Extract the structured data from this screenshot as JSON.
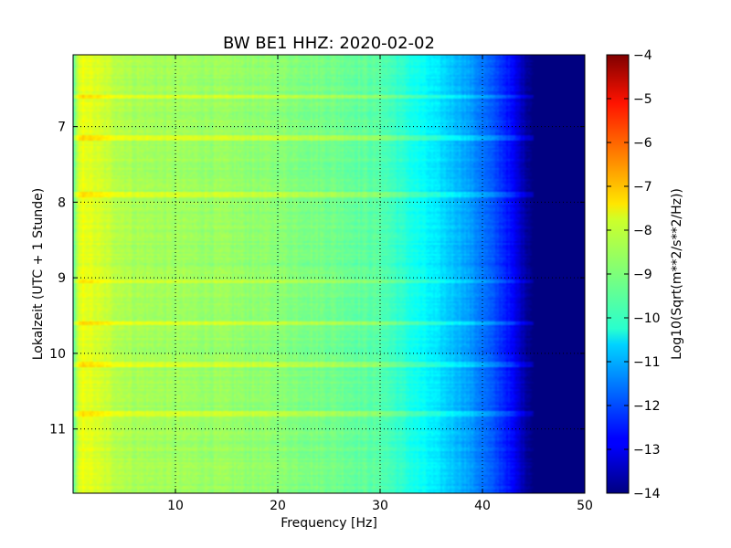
{
  "chart_data": {
    "type": "heatmap",
    "title": "BW BE1 HHZ: 2020-02-02",
    "xlabel": "Frequency [Hz]",
    "ylabel": "Lokalzeit (UTC + 1 Stunde)",
    "colorbar_label": "Log10(Sqrt(m**2/s**2/Hz))",
    "colormap": "jet",
    "xlim": [
      0,
      50
    ],
    "ylim": [
      6.05,
      11.85
    ],
    "y_inverted": true,
    "x_ticks": [
      10,
      20,
      30,
      40,
      50
    ],
    "y_ticks": [
      7,
      8,
      9,
      10,
      11
    ],
    "colorbar_range": [
      -14,
      -4
    ],
    "colorbar_ticks": [
      -4,
      -5,
      -6,
      -7,
      -8,
      -9,
      -10,
      -11,
      -12,
      -13,
      -14
    ],
    "grid": true,
    "spectral_profile": {
      "frequency_hz": [
        0,
        0.5,
        1,
        2,
        4,
        6,
        10,
        14,
        20,
        25,
        30,
        32,
        34,
        36,
        38,
        40,
        42,
        43,
        44,
        45,
        50
      ],
      "log_psd": [
        -9.5,
        -8.3,
        -7.9,
        -8.1,
        -8.4,
        -8.6,
        -8.7,
        -8.75,
        -8.9,
        -9.1,
        -9.4,
        -9.8,
        -10.2,
        -10.6,
        -11.0,
        -11.6,
        -12.3,
        -12.8,
        -13.5,
        -14.0,
        -14.0
      ]
    },
    "bright_time_bands_hours": [
      6.6,
      7.15,
      7.9,
      9.05,
      9.6,
      10.15,
      10.8
    ]
  }
}
